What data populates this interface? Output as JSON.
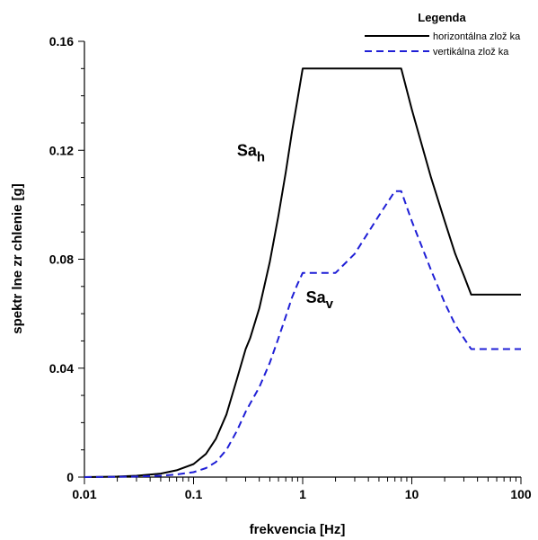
{
  "chart_data": {
    "type": "line",
    "xscale": "log",
    "xlabel": "frekvencia [Hz]",
    "ylabel": "spektr lne zr chlenie [g]",
    "xlim": [
      0.01,
      100
    ],
    "ylim": [
      0,
      0.16
    ],
    "xticks": [
      {
        "value": 0.01,
        "label": "0.01"
      },
      {
        "value": 0.1,
        "label": "0.1"
      },
      {
        "value": 1,
        "label": "1"
      },
      {
        "value": 10,
        "label": "10"
      },
      {
        "value": 100,
        "label": "100"
      }
    ],
    "yticks": [
      {
        "value": 0,
        "label": "0"
      },
      {
        "value": 0.04,
        "label": "0.04"
      },
      {
        "value": 0.08,
        "label": "0.08"
      },
      {
        "value": 0.12,
        "label": "0.12"
      },
      {
        "value": 0.16,
        "label": "0.16"
      }
    ],
    "grid": false,
    "legend": {
      "title": "Legenda",
      "position": "top-right"
    },
    "series": [
      {
        "name": "horizontálna zlož ka",
        "color": "#000000",
        "style": "solid",
        "x": [
          0.01,
          0.02,
          0.03,
          0.05,
          0.07,
          0.1,
          0.13,
          0.16,
          0.2,
          0.25,
          0.3,
          0.33,
          0.4,
          0.5,
          0.6,
          0.7,
          0.8,
          0.9,
          1.0,
          8.0,
          10,
          15,
          20,
          25,
          30,
          35,
          100
        ],
        "y": [
          0,
          0.0002,
          0.0005,
          0.0013,
          0.0025,
          0.0048,
          0.0085,
          0.014,
          0.023,
          0.036,
          0.047,
          0.051,
          0.062,
          0.079,
          0.096,
          0.112,
          0.127,
          0.139,
          0.15,
          0.15,
          0.135,
          0.11,
          0.094,
          0.082,
          0.074,
          0.067,
          0.067
        ]
      },
      {
        "name": "vertikálna zlož ka",
        "color": "#1f1fd6",
        "style": "dashed",
        "x": [
          0.01,
          0.02,
          0.03,
          0.05,
          0.07,
          0.1,
          0.13,
          0.16,
          0.2,
          0.25,
          0.3,
          0.33,
          0.4,
          0.5,
          0.6,
          0.7,
          0.8,
          0.9,
          1.0,
          2.0,
          3.0,
          5.0,
          7.0,
          8.0,
          10,
          15,
          20,
          25,
          30,
          35,
          100
        ],
        "y": [
          0,
          0.0001,
          0.0002,
          0.0005,
          0.001,
          0.0018,
          0.0033,
          0.0055,
          0.01,
          0.017,
          0.024,
          0.027,
          0.033,
          0.042,
          0.051,
          0.059,
          0.066,
          0.071,
          0.075,
          0.075,
          0.082,
          0.096,
          0.105,
          0.105,
          0.094,
          0.076,
          0.064,
          0.056,
          0.051,
          0.047,
          0.047
        ]
      }
    ],
    "annotations": [
      {
        "base": "Sa",
        "sub": "h",
        "x": 0.25,
        "y": 0.118
      },
      {
        "base": "Sa",
        "sub": "v",
        "x": 1.07,
        "y": 0.064
      }
    ]
  }
}
